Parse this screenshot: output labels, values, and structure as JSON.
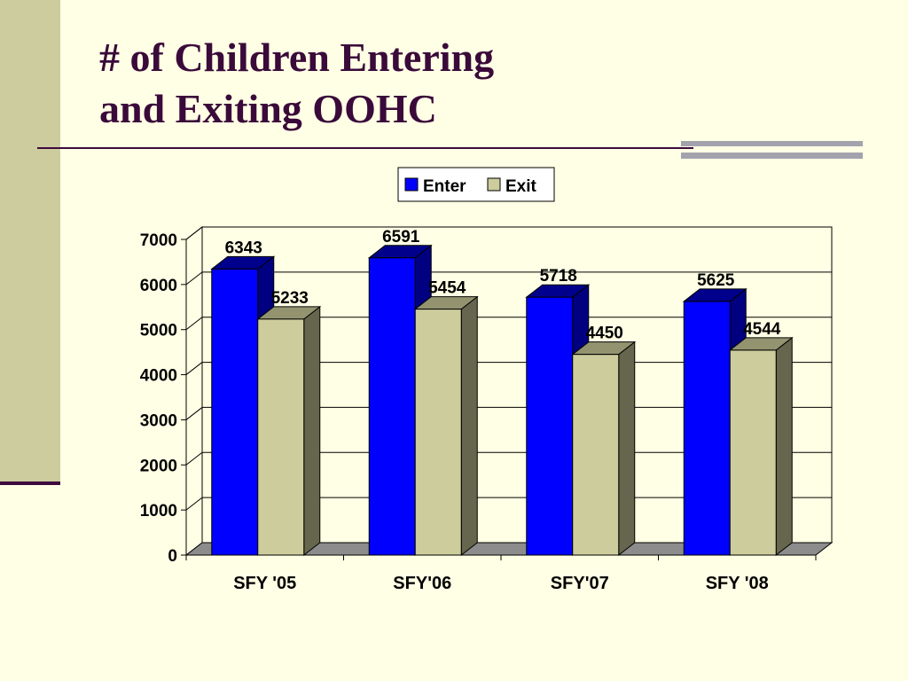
{
  "slide": {
    "title_line1": "# of Children Entering",
    "title_line2": "and Exiting OOHC"
  },
  "colors": {
    "background": "#FFFFE5",
    "enter": "#0000FF",
    "exit": "#CCCC9C",
    "title": "#3A0A3A",
    "side_bar": "#CDCC9E"
  },
  "chart_data": {
    "type": "bar",
    "style": "3d-clustered-column",
    "categories": [
      "SFY '05",
      "SFY'06",
      "SFY'07",
      "SFY '08"
    ],
    "series": [
      {
        "name": "Enter",
        "values": [
          6343,
          6591,
          5718,
          5625
        ]
      },
      {
        "name": "Exit",
        "values": [
          5233,
          5454,
          4450,
          4544
        ]
      }
    ],
    "ylim": [
      0,
      7000
    ],
    "yticks": [
      "0",
      "1000",
      "2000",
      "3000",
      "4000",
      "5000",
      "6000",
      "7000"
    ],
    "grid": true,
    "legend_position": "top-center",
    "data_labels": true
  }
}
